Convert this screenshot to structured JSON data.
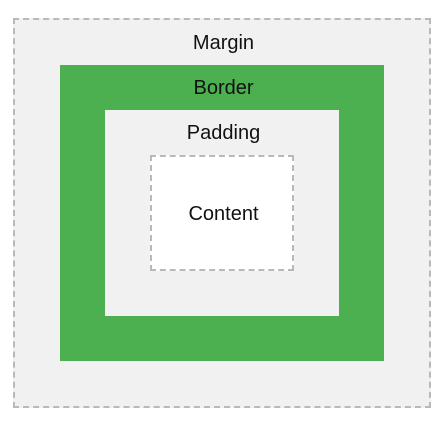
{
  "layers": {
    "margin": {
      "label": "Margin"
    },
    "border": {
      "label": "Border"
    },
    "padding": {
      "label": "Padding"
    },
    "content": {
      "label": "Content"
    }
  },
  "colors": {
    "margin_fill": "#f1f1f1",
    "border_fill": "#4caf50",
    "padding_fill": "#f1f1f1",
    "content_fill": "#ffffff",
    "dash_stroke": "#b9b9b9"
  }
}
